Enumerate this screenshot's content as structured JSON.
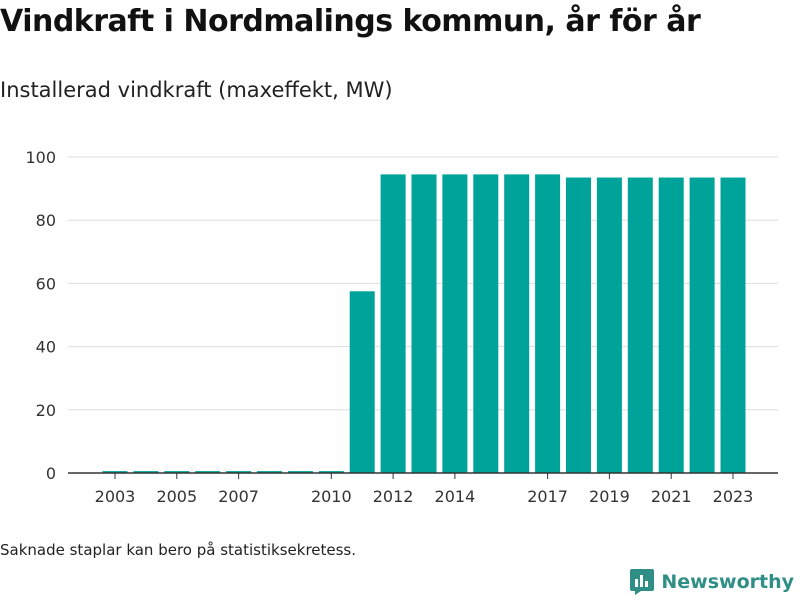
{
  "header": {
    "title": "Vindkraft i Nordmalings kommun, år för år",
    "subtitle": "Installerad vindkraft (maxeffekt, MW)"
  },
  "footer": {
    "note": "Saknade staplar kan bero på statistiksekretess.",
    "brand": "Newsworthy",
    "logo_icon": "newsworthy-logo-icon"
  },
  "colors": {
    "bar": "#00a39a",
    "grid": "#dddddd",
    "axis": "#333333",
    "brand": "#2f8f86"
  },
  "chart_data": {
    "type": "bar",
    "title": "Vindkraft i Nordmalings kommun, år för år",
    "subtitle": "Installerad vindkraft (maxeffekt, MW)",
    "xlabel": "",
    "ylabel": "",
    "categories": [
      2003,
      2004,
      2005,
      2006,
      2007,
      2008,
      2009,
      2010,
      2011,
      2012,
      2013,
      2014,
      2015,
      2016,
      2017,
      2018,
      2019,
      2020,
      2021,
      2022,
      2023
    ],
    "values": [
      0.6,
      0.6,
      0.6,
      0.6,
      0.6,
      0.6,
      0.6,
      0.6,
      57.5,
      94.5,
      94.5,
      94.5,
      94.5,
      94.5,
      94.5,
      93.5,
      93.5,
      93.5,
      93.5,
      93.5,
      93.5
    ],
    "x_tick_labels": [
      "2003",
      "2005",
      "2007",
      "2010",
      "2012",
      "2014",
      "2017",
      "2019",
      "2021",
      "2023"
    ],
    "x_tick_positions": [
      2003,
      2005,
      2007,
      2010,
      2012,
      2014,
      2017,
      2019,
      2021,
      2023
    ],
    "y_ticks": [
      0,
      20,
      40,
      60,
      80,
      100
    ],
    "ylim": [
      0,
      100
    ],
    "grid": true,
    "legend": "none"
  }
}
